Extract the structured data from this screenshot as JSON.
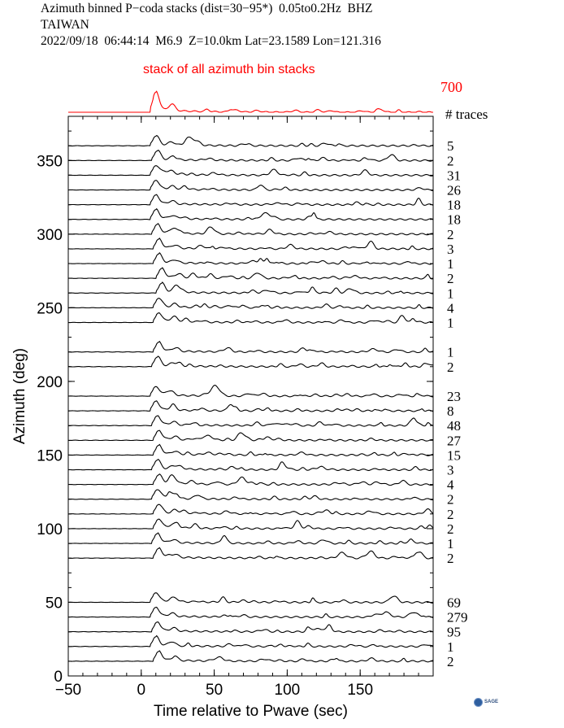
{
  "header": {
    "line1": "Azimuth binned P−coda stacks (dist=30−95*)  0.05to0.2Hz  BHZ",
    "line2": "TAIWAN",
    "line3": "2022/09/18  06:44:14  M6.9  Z=10.0km Lat=23.1589 Lon=121.316"
  },
  "logo": {
    "text": "SAGE",
    "icon": "sage-logo-icon"
  },
  "chart_data": {
    "type": "line",
    "xlabel": "Time relative to Pwave (sec)",
    "ylabel": "Azimuth (deg)",
    "xlim": [
      -50,
      200
    ],
    "ylim": [
      0,
      380
    ],
    "xticks": [
      -50,
      0,
      50,
      100,
      150
    ],
    "yticks": [
      0,
      50,
      100,
      150,
      200,
      250,
      300,
      350
    ],
    "trace_count_label": "# traces",
    "colors": {
      "traces": "#000000",
      "stack": "#ff0000"
    },
    "stack": {
      "label": "stack of all azimuth bin stacks",
      "count": "700",
      "peak_time": 10
    },
    "bins": [
      {
        "azimuth": 10,
        "count": "2",
        "peak_time": 12
      },
      {
        "azimuth": 20,
        "count": "1",
        "peak_time": 10
      },
      {
        "azimuth": 30,
        "count": "95",
        "peak_time": 11
      },
      {
        "azimuth": 40,
        "count": "279",
        "peak_time": 10
      },
      {
        "azimuth": 50,
        "count": "69",
        "peak_time": 10
      },
      {
        "azimuth": 80,
        "count": "2",
        "peak_time": 12
      },
      {
        "azimuth": 90,
        "count": "1",
        "peak_time": 11
      },
      {
        "azimuth": 100,
        "count": "2",
        "peak_time": 12
      },
      {
        "azimuth": 110,
        "count": "2",
        "peak_time": 12
      },
      {
        "azimuth": 120,
        "count": "2",
        "peak_time": 11
      },
      {
        "azimuth": 130,
        "count": "4",
        "peak_time": 12
      },
      {
        "azimuth": 140,
        "count": "3",
        "peak_time": 11
      },
      {
        "azimuth": 150,
        "count": "15",
        "peak_time": 12
      },
      {
        "azimuth": 160,
        "count": "27",
        "peak_time": 12
      },
      {
        "azimuth": 170,
        "count": "48",
        "peak_time": 11
      },
      {
        "azimuth": 180,
        "count": "8",
        "peak_time": 10
      },
      {
        "azimuth": 190,
        "count": "23",
        "peak_time": 10
      },
      {
        "azimuth": 210,
        "count": "2",
        "peak_time": 11
      },
      {
        "azimuth": 220,
        "count": "1",
        "peak_time": 12
      },
      {
        "azimuth": 240,
        "count": "1",
        "peak_time": 12
      },
      {
        "azimuth": 250,
        "count": "4",
        "peak_time": 12
      },
      {
        "azimuth": 260,
        "count": "1",
        "peak_time": 14
      },
      {
        "azimuth": 270,
        "count": "2",
        "peak_time": 14
      },
      {
        "azimuth": 280,
        "count": "1",
        "peak_time": 12
      },
      {
        "azimuth": 290,
        "count": "3",
        "peak_time": 12
      },
      {
        "azimuth": 300,
        "count": "2",
        "peak_time": 11
      },
      {
        "azimuth": 310,
        "count": "18",
        "peak_time": 10
      },
      {
        "azimuth": 320,
        "count": "18",
        "peak_time": 10
      },
      {
        "azimuth": 330,
        "count": "26",
        "peak_time": 10
      },
      {
        "azimuth": 340,
        "count": "31",
        "peak_time": 10
      },
      {
        "azimuth": 350,
        "count": "2",
        "peak_time": 11
      },
      {
        "azimuth": 360,
        "count": "5",
        "peak_time": 10
      }
    ]
  }
}
